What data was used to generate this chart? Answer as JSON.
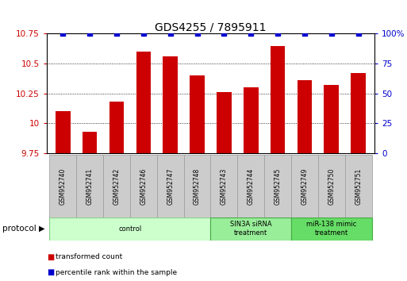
{
  "title": "GDS4255 / 7895911",
  "samples": [
    "GSM952740",
    "GSM952741",
    "GSM952742",
    "GSM952746",
    "GSM952747",
    "GSM952748",
    "GSM952743",
    "GSM952744",
    "GSM952745",
    "GSM952749",
    "GSM952750",
    "GSM952751"
  ],
  "bar_values": [
    10.1,
    9.93,
    10.18,
    10.6,
    10.56,
    10.4,
    10.26,
    10.3,
    10.65,
    10.36,
    10.32,
    10.42
  ],
  "percentile_values": [
    100,
    100,
    100,
    100,
    100,
    100,
    100,
    100,
    100,
    100,
    100,
    100
  ],
  "bar_color": "#cc0000",
  "percentile_color": "#0000cc",
  "ylim_left": [
    9.75,
    10.75
  ],
  "ylim_right": [
    0,
    100
  ],
  "yticks_left": [
    9.75,
    10.0,
    10.25,
    10.5,
    10.75
  ],
  "yticks_right": [
    0,
    25,
    50,
    75,
    100
  ],
  "ytick_labels_left": [
    "9.75",
    "10",
    "10.25",
    "10.5",
    "10.75"
  ],
  "ytick_labels_right": [
    "0",
    "25",
    "50",
    "75",
    "100%"
  ],
  "group_extents": [
    [
      0,
      5,
      "control",
      "#ccffcc",
      "#88cc88"
    ],
    [
      6,
      8,
      "SIN3A siRNA\ntreatment",
      "#99ee99",
      "#44aa44"
    ],
    [
      9,
      11,
      "miR-138 mimic\ntreatment",
      "#66dd66",
      "#44aa44"
    ]
  ],
  "legend_items": [
    {
      "label": "transformed count",
      "color": "#cc0000"
    },
    {
      "label": "percentile rank within the sample",
      "color": "#0000cc"
    }
  ],
  "protocol_label": "protocol",
  "bar_width": 0.55,
  "title_fontsize": 10,
  "tick_fontsize": 7.5,
  "sample_box_color": "#cccccc",
  "sample_box_edge": "#999999"
}
